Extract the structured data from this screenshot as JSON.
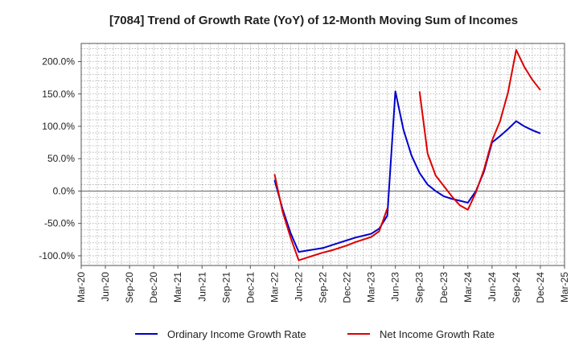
{
  "chart_data": {
    "type": "line",
    "title": "[7084]  Trend of Growth Rate (YoY) of 12-Month Moving Sum of Incomes",
    "xlabel": "",
    "ylabel": "",
    "x_ticks": [
      "Mar-20",
      "Jun-20",
      "Sep-20",
      "Dec-20",
      "Mar-21",
      "Jun-21",
      "Sep-21",
      "Dec-21",
      "Mar-22",
      "Jun-22",
      "Sep-22",
      "Dec-22",
      "Mar-23",
      "Jun-23",
      "Sep-23",
      "Dec-23",
      "Mar-24",
      "Jun-24",
      "Sep-24",
      "Dec-24",
      "Mar-25"
    ],
    "y_ticks": [
      "-100.0%",
      "-50.0%",
      "0.0%",
      "50.0%",
      "100.0%",
      "150.0%",
      "200.0%"
    ],
    "y_tick_values": [
      -100,
      -50,
      0,
      50,
      100,
      150,
      200
    ],
    "ylim": [
      -115,
      228
    ],
    "grid": true,
    "legend_position": "bottom",
    "series": [
      {
        "name": "Ordinary Income Growth Rate",
        "color": "#0000cc",
        "points": [
          {
            "x": "Mar-22",
            "y": 17
          },
          {
            "x": "Apr-22",
            "y": -28
          },
          {
            "x": "May-22",
            "y": -65
          },
          {
            "x": "Jun-22",
            "y": -94
          },
          {
            "x": "Jul-22",
            "y": -92
          },
          {
            "x": "Aug-22",
            "y": -90
          },
          {
            "x": "Sep-22",
            "y": -88
          },
          {
            "x": "Oct-22",
            "y": -84
          },
          {
            "x": "Nov-22",
            "y": -80
          },
          {
            "x": "Dec-22",
            "y": -76
          },
          {
            "x": "Jan-23",
            "y": -72
          },
          {
            "x": "Feb-23",
            "y": -69
          },
          {
            "x": "Mar-23",
            "y": -66
          },
          {
            "x": "Apr-23",
            "y": -58
          },
          {
            "x": "May-23",
            "y": -38
          },
          {
            "x": "Jun-23",
            "y": 154
          },
          {
            "x": "Jul-23",
            "y": 95
          },
          {
            "x": "Aug-23",
            "y": 55
          },
          {
            "x": "Sep-23",
            "y": 28
          },
          {
            "x": "Oct-23",
            "y": 10
          },
          {
            "x": "Nov-23",
            "y": 0
          },
          {
            "x": "Dec-23",
            "y": -8
          },
          {
            "x": "Jan-24",
            "y": -12
          },
          {
            "x": "Feb-24",
            "y": -15
          },
          {
            "x": "Mar-24",
            "y": -18
          },
          {
            "x": "Apr-24",
            "y": 0
          },
          {
            "x": "May-24",
            "y": 30
          },
          {
            "x": "Jun-24",
            "y": 75
          },
          {
            "x": "Jul-24",
            "y": 85
          },
          {
            "x": "Aug-24",
            "y": 96
          },
          {
            "x": "Sep-24",
            "y": 108
          },
          {
            "x": "Oct-24",
            "y": 100
          },
          {
            "x": "Nov-24",
            "y": 94
          },
          {
            "x": "Dec-24",
            "y": 89
          }
        ]
      },
      {
        "name": "Net Income Growth Rate",
        "color": "#dd0000",
        "points": [
          {
            "x": "Mar-22",
            "y": 26
          },
          {
            "x": "Apr-22",
            "y": -32
          },
          {
            "x": "May-22",
            "y": -72
          },
          {
            "x": "Jun-22",
            "y": -107
          },
          {
            "x": "Jul-22",
            "y": -103
          },
          {
            "x": "Aug-22",
            "y": -99
          },
          {
            "x": "Sep-22",
            "y": -95
          },
          {
            "x": "Oct-22",
            "y": -92
          },
          {
            "x": "Nov-22",
            "y": -88
          },
          {
            "x": "Dec-22",
            "y": -84
          },
          {
            "x": "Jan-23",
            "y": -79
          },
          {
            "x": "Feb-23",
            "y": -75
          },
          {
            "x": "Mar-23",
            "y": -71
          },
          {
            "x": "Apr-23",
            "y": -62
          },
          {
            "x": "May-23",
            "y": -27
          },
          {
            "x": "Sep-23",
            "y": 154
          },
          {
            "x": "Oct-23",
            "y": 58
          },
          {
            "x": "Nov-23",
            "y": 24
          },
          {
            "x": "Dec-23",
            "y": 8
          },
          {
            "x": "Jan-24",
            "y": -8
          },
          {
            "x": "Feb-24",
            "y": -22
          },
          {
            "x": "Mar-24",
            "y": -29
          },
          {
            "x": "Apr-24",
            "y": -2
          },
          {
            "x": "May-24",
            "y": 33
          },
          {
            "x": "Jun-24",
            "y": 78
          },
          {
            "x": "Jul-24",
            "y": 108
          },
          {
            "x": "Aug-24",
            "y": 153
          },
          {
            "x": "Sep-24",
            "y": 218
          },
          {
            "x": "Oct-24",
            "y": 192
          },
          {
            "x": "Nov-24",
            "y": 172
          },
          {
            "x": "Dec-24",
            "y": 156
          }
        ]
      }
    ]
  }
}
